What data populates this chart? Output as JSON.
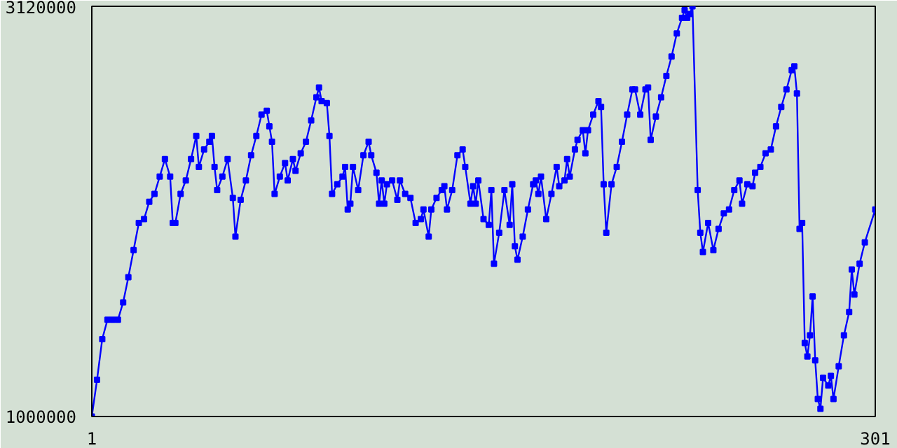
{
  "chart_data": {
    "type": "line",
    "marker": "square",
    "xlim": [
      1,
      301
    ],
    "ylim": [
      1000000,
      3120000
    ],
    "xticks": [
      1,
      301
    ],
    "yticks": [
      1000000,
      3120000
    ],
    "x": [
      1,
      3,
      5,
      7,
      9,
      11,
      13,
      15,
      17,
      19,
      21,
      23,
      25,
      27,
      29,
      31,
      32,
      33,
      35,
      37,
      39,
      41,
      42,
      44,
      46,
      47,
      48,
      49,
      51,
      53,
      55,
      56,
      58,
      60,
      62,
      64,
      66,
      68,
      69,
      70,
      71,
      73,
      75,
      76,
      78,
      79,
      81,
      83,
      85,
      87,
      88,
      89,
      91,
      92,
      93,
      95,
      97,
      98,
      99,
      100,
      101,
      103,
      105,
      107,
      108,
      110,
      111,
      112,
      113,
      114,
      116,
      118,
      119,
      121,
      123,
      125,
      127,
      128,
      130,
      131,
      133,
      135,
      136,
      137,
      139,
      141,
      143,
      144,
      146,
      147,
      148,
      149,
      151,
      153,
      154,
      155,
      157,
      159,
      161,
      162,
      163,
      164,
      166,
      168,
      170,
      171,
      172,
      173,
      175,
      177,
      179,
      180,
      182,
      183,
      184,
      186,
      187,
      189,
      190,
      191,
      193,
      195,
      196,
      197,
      198,
      200,
      202,
      204,
      206,
      208,
      209,
      211,
      213,
      214,
      215,
      217,
      219,
      221,
      223,
      225,
      227,
      228,
      229,
      230,
      231,
      233,
      234,
      235,
      237,
      239,
      241,
      243,
      245,
      247,
      249,
      250,
      252,
      254,
      255,
      257,
      259,
      261,
      263,
      265,
      267,
      269,
      270,
      271,
      272,
      273,
      274,
      275,
      276,
      277,
      278,
      279,
      280,
      281,
      283,
      284,
      285,
      287,
      289,
      291,
      292,
      293,
      295,
      297,
      301
    ],
    "series": [
      {
        "color": "#0000ff",
        "values": [
          1000000,
          1190000,
          1400000,
          1500000,
          1500000,
          1500000,
          1590000,
          1720000,
          1860000,
          2000000,
          2020000,
          2110000,
          2150000,
          2240000,
          2330000,
          2240000,
          2000000,
          2000000,
          2150000,
          2220000,
          2330000,
          2450000,
          2290000,
          2380000,
          2420000,
          2450000,
          2290000,
          2170000,
          2240000,
          2330000,
          2130000,
          1930000,
          2120000,
          2220000,
          2350000,
          2450000,
          2560000,
          2580000,
          2500000,
          2420000,
          2150000,
          2240000,
          2310000,
          2220000,
          2330000,
          2270000,
          2360000,
          2420000,
          2530000,
          2650000,
          2700000,
          2630000,
          2620000,
          2450000,
          2150000,
          2200000,
          2240000,
          2290000,
          2070000,
          2100000,
          2290000,
          2170000,
          2350000,
          2420000,
          2350000,
          2260000,
          2100000,
          2220000,
          2100000,
          2200000,
          2220000,
          2120000,
          2220000,
          2150000,
          2130000,
          2000000,
          2020000,
          2070000,
          1930000,
          2070000,
          2130000,
          2170000,
          2190000,
          2070000,
          2170000,
          2350000,
          2380000,
          2290000,
          2100000,
          2190000,
          2100000,
          2220000,
          2020000,
          1990000,
          2170000,
          1790000,
          1950000,
          2170000,
          1990000,
          2200000,
          1880000,
          1810000,
          1930000,
          2070000,
          2200000,
          2220000,
          2150000,
          2240000,
          2020000,
          2150000,
          2290000,
          2190000,
          2220000,
          2330000,
          2240000,
          2380000,
          2430000,
          2480000,
          2360000,
          2480000,
          2560000,
          2630000,
          2600000,
          2200000,
          1950000,
          2200000,
          2290000,
          2420000,
          2560000,
          2690000,
          2690000,
          2560000,
          2690000,
          2700000,
          2430000,
          2550000,
          2650000,
          2760000,
          2860000,
          2980000,
          3060000,
          3100000,
          3060000,
          3080000,
          3120000,
          2170000,
          1950000,
          1850000,
          2000000,
          1860000,
          1970000,
          2050000,
          2070000,
          2170000,
          2220000,
          2100000,
          2200000,
          2190000,
          2260000,
          2290000,
          2360000,
          2380000,
          2500000,
          2600000,
          2690000,
          2790000,
          2810000,
          2670000,
          1970000,
          2000000,
          1380000,
          1310000,
          1420000,
          1620000,
          1290000,
          1090000,
          1040000,
          1200000,
          1160000,
          1210000,
          1090000,
          1260000,
          1420000,
          1540000,
          1760000,
          1630000,
          1790000,
          1900000,
          2070000
        ]
      }
    ]
  }
}
